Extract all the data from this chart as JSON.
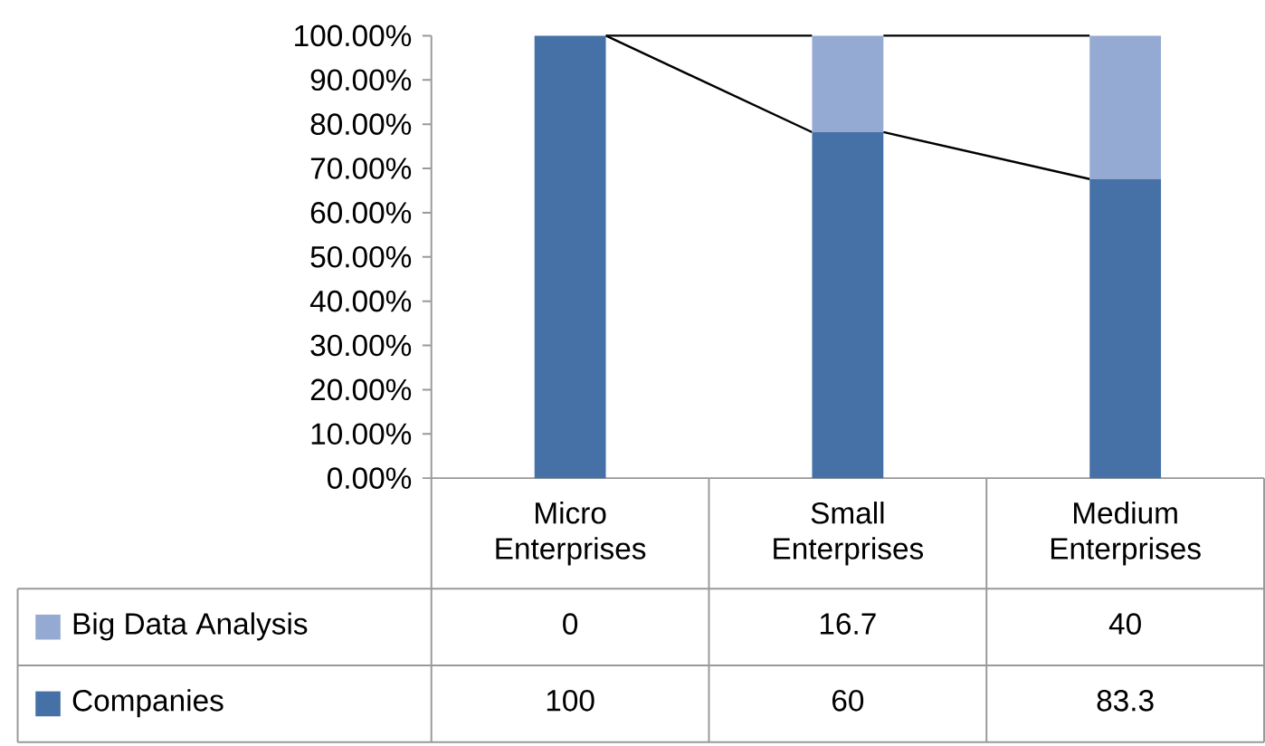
{
  "chart_data": {
    "type": "bar",
    "stacked": true,
    "categories": [
      "Micro Enterprises",
      "Small Enterprises",
      "Medium Enterprises"
    ],
    "series": [
      {
        "name": "Companies",
        "color": "#4571a7",
        "values": [
          100,
          78.2,
          67.6
        ]
      },
      {
        "name": "Big Data Analysis",
        "color": "#95aad3",
        "values": [
          0,
          21.8,
          32.4
        ]
      }
    ],
    "annotations": [
      "0",
      "16.7",
      "40",
      "100",
      "60",
      "83.3"
    ],
    "ylim": [
      0,
      100
    ],
    "yticks": [
      {
        "value": 0,
        "label": "0.00%"
      },
      {
        "value": 10,
        "label": "10.00%"
      },
      {
        "value": 20,
        "label": "20.00%"
      },
      {
        "value": 30,
        "label": "30.00%"
      },
      {
        "value": 40,
        "label": "40.00%"
      },
      {
        "value": 50,
        "label": "50.00%"
      },
      {
        "value": 60,
        "label": "60.00%"
      },
      {
        "value": 70,
        "label": "70.00%"
      },
      {
        "value": 80,
        "label": "80.00%"
      },
      {
        "value": 90,
        "label": "90.00%"
      },
      {
        "value": 100,
        "label": "100.00%"
      }
    ],
    "legend": "bottom",
    "grid": false
  }
}
